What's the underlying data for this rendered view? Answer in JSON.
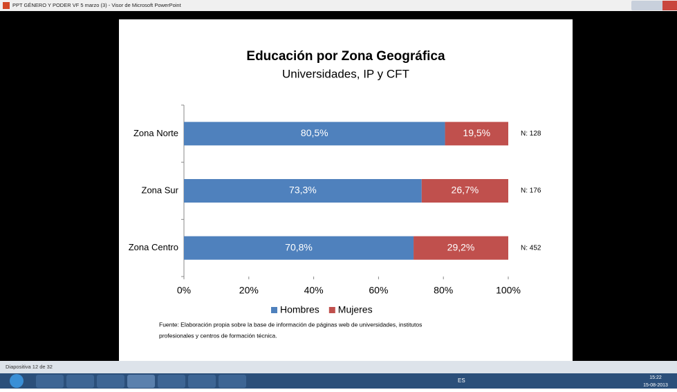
{
  "window": {
    "title": "PPT GÉNERO Y PODER VF 5 marzo (3) - Visor de Microsoft PowerPoint"
  },
  "chart_data": {
    "type": "hbar-stacked",
    "title": "Educación por Zona Geográfica",
    "subtitle": "Universidades, IP y CFT",
    "categories": [
      "Zona Norte",
      "Zona Sur",
      "Zona Centro"
    ],
    "series": [
      {
        "name": "Hombres",
        "color": "#4f81bd",
        "values": [
          80.5,
          73.3,
          70.8
        ],
        "value_labels": [
          "80,5%",
          "73,3%",
          "70,8%"
        ]
      },
      {
        "name": "Mujeres",
        "color": "#c0504d",
        "values": [
          19.5,
          26.7,
          29.2
        ],
        "value_labels": [
          "19,5%",
          "26,7%",
          "29,2%"
        ]
      }
    ],
    "annotations": [
      "N: 128",
      "N: 176",
      "N: 452"
    ],
    "xlim": [
      0,
      100
    ],
    "xticks": [
      {
        "value": 0,
        "label": "0%"
      },
      {
        "value": 20,
        "label": "20%"
      },
      {
        "value": 40,
        "label": "40%"
      },
      {
        "value": 60,
        "label": "60%"
      },
      {
        "value": 80,
        "label": "80%"
      },
      {
        "value": 100,
        "label": "100%"
      }
    ],
    "legend": "bottom",
    "source": [
      "Fuente: Elaboración propia sobre la base de información de páginas web de universidades, institutos",
      "profesionales y centros de formación técnica."
    ]
  },
  "statusbar": {
    "text": "Diapositiva 12 de 32"
  },
  "taskbar": {
    "language": "ES",
    "time": "15:22",
    "date": "15-08-2013"
  }
}
